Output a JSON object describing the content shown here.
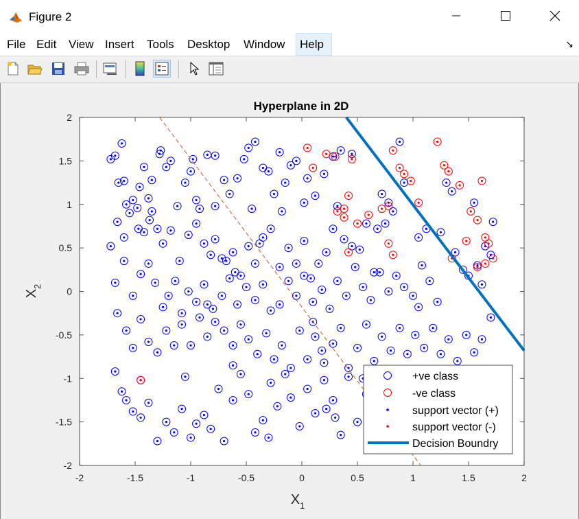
{
  "window": {
    "title": "Figure 2",
    "minimize_icon": "minimize-icon",
    "maximize_icon": "maximize-icon",
    "close_icon": "close-icon"
  },
  "menu": {
    "items": [
      "File",
      "Edit",
      "View",
      "Insert",
      "Tools",
      "Desktop",
      "Window",
      "Help"
    ],
    "active": "Help"
  },
  "toolbar": {
    "icons": [
      "new-figure-icon",
      "open-file-icon",
      "save-icon",
      "print-icon",
      "link-plot-icon",
      "insert-colorbar-icon",
      "insert-legend-icon",
      "edit-plot-arrow-icon",
      "property-inspector-icon"
    ],
    "pressed": "insert-legend-icon"
  },
  "chart_data": {
    "type": "scatter",
    "title": "Hyperplane in 2D",
    "xlabel": "X",
    "xlabel_sub": "1",
    "ylabel": "X",
    "ylabel_sub": "2",
    "xlim": [
      -2,
      2
    ],
    "ylim": [
      -2,
      2
    ],
    "xticks": [
      "-2",
      "-1.5",
      "-1",
      "-0.5",
      "0",
      "0.5",
      "1",
      "1.5",
      "2"
    ],
    "yticks": [
      "-2",
      "-1.5",
      "-1",
      "-0.5",
      "0",
      "0.5",
      "1",
      "1.5",
      "2"
    ],
    "grid": false,
    "legend_position": "bottom-right",
    "legend": [
      "+ve class",
      "-ve class",
      "support vector (+)",
      "support vector (-)",
      "Decision Boundry"
    ],
    "colors": {
      "pos": "#0000ff",
      "neg": "#ff0000",
      "boundary": "#0072bd",
      "dashed": "#d95319"
    },
    "decision_boundary": {
      "x": [
        0.4,
        2.0
      ],
      "y": [
        2.0,
        -0.68
      ]
    },
    "dashed_line": {
      "x": [
        -1.28,
        1.07
      ],
      "y": [
        2.0,
        -2.0
      ]
    },
    "pos_points": [
      [
        -1.72,
        1.52
      ],
      [
        -1.68,
        1.56
      ],
      [
        -1.62,
        1.7
      ],
      [
        -1.6,
        1.27
      ],
      [
        -1.65,
        1.25
      ],
      [
        -1.58,
        1.0
      ],
      [
        -1.52,
        1.05
      ],
      [
        -1.48,
        0.96
      ],
      [
        -1.46,
        1.2
      ],
      [
        -1.42,
        1.43
      ],
      [
        -1.38,
        1.07
      ],
      [
        -1.35,
        0.92
      ],
      [
        -1.28,
        1.58
      ],
      [
        -1.27,
        1.62
      ],
      [
        -1.22,
        1.43
      ],
      [
        -1.18,
        1.5
      ],
      [
        -1.12,
        0.98
      ],
      [
        -1.05,
        1.25
      ],
      [
        -1.0,
        1.38
      ],
      [
        -0.98,
        1.52
      ],
      [
        -0.92,
        0.95
      ],
      [
        -0.85,
        1.57
      ],
      [
        -0.78,
        1.56
      ],
      [
        -0.7,
        1.28
      ],
      [
        -0.65,
        1.12
      ],
      [
        -0.58,
        1.3
      ],
      [
        -0.52,
        1.52
      ],
      [
        -0.48,
        1.65
      ],
      [
        -0.42,
        1.72
      ],
      [
        -0.35,
        1.42
      ],
      [
        -0.3,
        1.38
      ],
      [
        -0.25,
        1.12
      ],
      [
        -0.2,
        1.6
      ],
      [
        -0.15,
        1.25
      ],
      [
        -0.1,
        1.45
      ],
      [
        -0.05,
        1.5
      ],
      [
        0.05,
        1.3
      ],
      [
        0.12,
        1.1
      ],
      [
        0.2,
        1.35
      ],
      [
        0.28,
        1.55
      ],
      [
        0.35,
        1.62
      ],
      [
        0.45,
        1.58
      ],
      [
        -1.72,
        0.52
      ],
      [
        -1.66,
        0.8
      ],
      [
        -1.6,
        0.62
      ],
      [
        -1.55,
        0.9
      ],
      [
        -1.47,
        0.72
      ],
      [
        -1.42,
        0.68
      ],
      [
        -1.37,
        0.82
      ],
      [
        -1.3,
        0.72
      ],
      [
        -1.25,
        0.55
      ],
      [
        -1.18,
        0.7
      ],
      [
        -1.1,
        0.35
      ],
      [
        -1.02,
        0.65
      ],
      [
        -0.95,
        0.78
      ],
      [
        -0.88,
        0.55
      ],
      [
        -0.82,
        0.42
      ],
      [
        -0.78,
        0.6
      ],
      [
        -0.72,
        0.38
      ],
      [
        -0.68,
        0.35
      ],
      [
        -0.62,
        0.45
      ],
      [
        -0.55,
        0.18
      ],
      [
        -0.48,
        0.52
      ],
      [
        -0.42,
        0.32
      ],
      [
        -0.35,
        0.62
      ],
      [
        -0.28,
        0.72
      ],
      [
        -0.2,
        0.28
      ],
      [
        -0.12,
        0.5
      ],
      [
        -0.05,
        0.32
      ],
      [
        0.02,
        0.58
      ],
      [
        0.08,
        0.15
      ],
      [
        0.15,
        0.32
      ],
      [
        0.22,
        0.45
      ],
      [
        0.28,
        0.72
      ],
      [
        0.32,
        0.98
      ],
      [
        0.38,
        0.6
      ],
      [
        0.45,
        0.52
      ],
      [
        0.52,
        0.48
      ],
      [
        0.58,
        0.78
      ],
      [
        -1.68,
        0.1
      ],
      [
        -1.6,
        0.35
      ],
      [
        -1.52,
        -0.05
      ],
      [
        -1.45,
        0.2
      ],
      [
        -1.38,
        0.32
      ],
      [
        -1.32,
        0.1
      ],
      [
        -1.25,
        -0.18
      ],
      [
        -1.2,
        -0.05
      ],
      [
        -1.14,
        0.12
      ],
      [
        -1.08,
        -0.25
      ],
      [
        -1.02,
        0.0
      ],
      [
        -0.95,
        -0.12
      ],
      [
        -0.88,
        0.08
      ],
      [
        -0.8,
        -0.2
      ],
      [
        -0.72,
        -0.05
      ],
      [
        -0.65,
        0.15
      ],
      [
        -0.58,
        -0.15
      ],
      [
        -0.5,
        0.05
      ],
      [
        -0.42,
        -0.1
      ],
      [
        -0.35,
        0.08
      ],
      [
        -0.28,
        -0.22
      ],
      [
        -0.2,
        -0.15
      ],
      [
        -0.12,
        0.12
      ],
      [
        -0.05,
        -0.05
      ],
      [
        0.02,
        0.18
      ],
      [
        0.1,
        -0.12
      ],
      [
        0.18,
        0.02
      ],
      [
        0.25,
        -0.2
      ],
      [
        0.32,
        0.12
      ],
      [
        0.4,
        -0.05
      ],
      [
        0.48,
        0.28
      ],
      [
        0.55,
        0.05
      ],
      [
        0.62,
        -0.1
      ],
      [
        0.7,
        0.22
      ],
      [
        0.78,
        0.0
      ],
      [
        0.85,
        0.18
      ],
      [
        0.92,
        0.05
      ],
      [
        1.0,
        -0.05
      ],
      [
        1.08,
        0.3
      ],
      [
        1.15,
        0.12
      ],
      [
        1.22,
        -0.12
      ],
      [
        -1.66,
        -0.25
      ],
      [
        -1.58,
        -0.45
      ],
      [
        -1.52,
        -0.65
      ],
      [
        -1.45,
        -0.32
      ],
      [
        -1.38,
        -0.58
      ],
      [
        -1.3,
        -0.7
      ],
      [
        -1.22,
        -0.45
      ],
      [
        -1.15,
        -0.62
      ],
      [
        -1.08,
        -0.38
      ],
      [
        -1.0,
        -0.62
      ],
      [
        -0.92,
        -0.3
      ],
      [
        -0.85,
        -0.52
      ],
      [
        -0.78,
        -0.35
      ],
      [
        -0.7,
        -0.45
      ],
      [
        -0.62,
        -0.62
      ],
      [
        -0.55,
        -0.38
      ],
      [
        -0.48,
        -0.55
      ],
      [
        -0.4,
        -0.72
      ],
      [
        -0.32,
        -0.48
      ],
      [
        -0.25,
        -0.78
      ],
      [
        -0.18,
        -0.62
      ],
      [
        -0.1,
        -0.88
      ],
      [
        -0.02,
        -0.45
      ],
      [
        0.05,
        -0.78
      ],
      [
        0.12,
        -0.52
      ],
      [
        0.2,
        -0.82
      ],
      [
        0.28,
        -0.6
      ],
      [
        0.35,
        -0.42
      ],
      [
        0.42,
        -0.88
      ],
      [
        0.5,
        -0.65
      ],
      [
        0.58,
        -0.38
      ],
      [
        0.65,
        -0.8
      ],
      [
        0.72,
        -0.52
      ],
      [
        0.8,
        -0.68
      ],
      [
        0.88,
        -0.42
      ],
      [
        0.95,
        -0.72
      ],
      [
        1.02,
        -0.5
      ],
      [
        1.1,
        -0.65
      ],
      [
        1.18,
        -0.42
      ],
      [
        1.25,
        -0.72
      ],
      [
        1.32,
        -0.55
      ],
      [
        1.4,
        -0.8
      ],
      [
        1.48,
        -0.5
      ],
      [
        1.55,
        -0.7
      ],
      [
        1.62,
        -0.55
      ],
      [
        1.7,
        -0.3
      ],
      [
        -1.68,
        -0.92
      ],
      [
        -1.62,
        -1.15
      ],
      [
        -1.58,
        -1.25
      ],
      [
        -1.52,
        -1.38
      ],
      [
        -1.45,
        -1.45
      ],
      [
        -1.38,
        -1.28
      ],
      [
        -1.3,
        -1.72
      ],
      [
        -1.22,
        -1.5
      ],
      [
        -1.15,
        -1.62
      ],
      [
        -1.08,
        -1.35
      ],
      [
        -1.0,
        -1.68
      ],
      [
        -0.95,
        -1.52
      ],
      [
        -0.88,
        -1.42
      ],
      [
        -0.82,
        -1.58
      ],
      [
        -0.75,
        -1.12
      ],
      [
        -0.7,
        -1.72
      ],
      [
        -0.62,
        -1.25
      ],
      [
        -0.55,
        -0.95
      ],
      [
        -0.48,
        -1.18
      ],
      [
        -0.42,
        -1.62
      ],
      [
        -0.35,
        -1.48
      ],
      [
        -0.28,
        -1.05
      ],
      [
        -0.22,
        -1.32
      ],
      [
        -0.15,
        -0.95
      ],
      [
        -0.1,
        -1.22
      ],
      [
        -0.02,
        -1.55
      ],
      [
        0.05,
        -1.12
      ],
      [
        0.12,
        -1.4
      ],
      [
        0.2,
        -1.02
      ],
      [
        0.28,
        -1.25
      ],
      [
        0.35,
        -1.65
      ],
      [
        0.42,
        -0.98
      ],
      [
        0.5,
        -1.5
      ],
      [
        0.58,
        -1.18
      ],
      [
        -0.3,
        -1.68
      ],
      [
        0.6,
        -1.1
      ],
      [
        0.65,
        -0.95
      ],
      [
        0.3,
        -1.45
      ],
      [
        0.55,
        -1.0
      ],
      [
        1.3,
        1.25
      ],
      [
        1.35,
        1.15
      ],
      [
        1.05,
        0.62
      ],
      [
        1.12,
        0.72
      ],
      [
        1.25,
        0.68
      ],
      [
        1.38,
        0.45
      ],
      [
        1.45,
        0.25
      ],
      [
        1.5,
        0.18
      ],
      [
        1.58,
        0.3
      ],
      [
        1.65,
        0.52
      ],
      [
        1.7,
        0.42
      ],
      [
        1.72,
        0.8
      ],
      [
        1.55,
        1.02
      ],
      [
        1.62,
        0.08
      ],
      [
        0.72,
        1.12
      ],
      [
        0.78,
        1.02
      ],
      [
        0.82,
        0.92
      ],
      [
        0.88,
        1.72
      ],
      [
        0.92,
        1.25
      ],
      [
        0.68,
        0.72
      ],
      [
        0.75,
        0.78
      ],
      [
        -1.45,
        -1.02
      ],
      [
        -0.85,
        -0.15
      ],
      [
        -0.6,
        0.22
      ],
      [
        -0.38,
        0.55
      ],
      [
        0.1,
        -0.35
      ],
      [
        0.65,
        0.22
      ],
      [
        -1.05,
        -0.98
      ],
      [
        -0.45,
        0.95
      ],
      [
        -0.78,
        0.98
      ],
      [
        -0.18,
        0.92
      ],
      [
        0.02,
        1.02
      ],
      [
        0.18,
        -0.68
      ],
      [
        -0.62,
        -0.85
      ],
      [
        1.05,
        -0.18
      ],
      [
        0.22,
        -1.35
      ],
      [
        -0.95,
        1.05
      ],
      [
        -1.35,
        1.28
      ]
    ],
    "neg_points": [
      [
        0.05,
        1.65
      ],
      [
        0.1,
        1.42
      ],
      [
        0.22,
        1.58
      ],
      [
        0.3,
        1.55
      ],
      [
        0.45,
        1.52
      ],
      [
        0.82,
        1.62
      ],
      [
        0.88,
        1.42
      ],
      [
        0.92,
        1.35
      ],
      [
        0.98,
        1.27
      ],
      [
        1.22,
        1.72
      ],
      [
        1.28,
        1.45
      ],
      [
        1.32,
        1.38
      ],
      [
        1.42,
        1.22
      ],
      [
        1.52,
        0.92
      ],
      [
        1.58,
        0.82
      ],
      [
        1.62,
        1.27
      ],
      [
        1.65,
        0.62
      ],
      [
        1.68,
        0.55
      ],
      [
        1.72,
        0.38
      ],
      [
        1.65,
        0.32
      ],
      [
        1.58,
        0.28
      ],
      [
        1.48,
        0.58
      ],
      [
        1.35,
        0.38
      ],
      [
        0.42,
        1.1
      ],
      [
        0.38,
        0.85
      ],
      [
        0.5,
        0.78
      ],
      [
        0.6,
        0.88
      ],
      [
        0.72,
        0.95
      ],
      [
        0.78,
        0.55
      ],
      [
        0.82,
        0.42
      ],
      [
        0.42,
        0.45
      ],
      [
        0.32,
        0.92
      ],
      [
        0.38,
        0.95
      ],
      [
        -1.45,
        -1.02
      ],
      [
        0.78,
        0.98
      ],
      [
        1.05,
        1.02
      ]
    ]
  }
}
